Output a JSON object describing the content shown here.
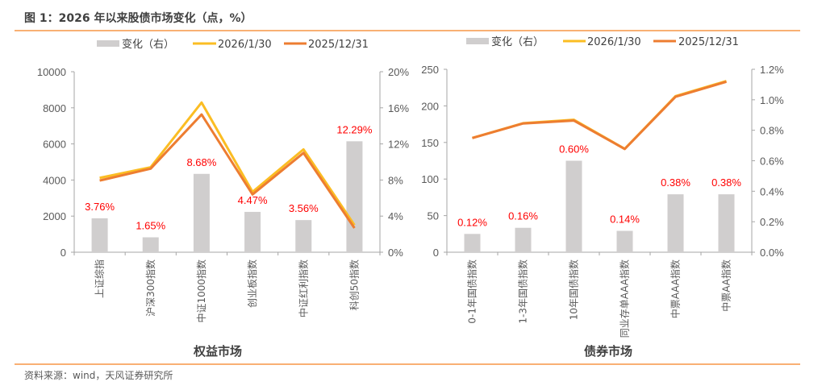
{
  "figure": {
    "title": "图 1：2026 年以来股债市场变化（点，%）",
    "source": "资料来源：wind，天风证券研究所",
    "accent_color": "#f79646"
  },
  "legend": {
    "bar_label": "变化（右）",
    "line1_label": "2026/1/30",
    "line2_label": "2025/12/31"
  },
  "colors": {
    "bar": "#d0cece",
    "line1": "#fbbd23",
    "line2": "#ed7d31",
    "data_label": "#ff0000"
  },
  "chart_data": [
    {
      "type": "bar+line",
      "xlabel": "权益市场",
      "categories": [
        "上证综指",
        "沪深300指数",
        "中证1000指数",
        "创业板指数",
        "中证红利指数",
        "科创50指数"
      ],
      "ylim": [
        0,
        10000
      ],
      "yticks": [
        "0",
        "2000",
        "4000",
        "6000",
        "8000",
        "10000"
      ],
      "y2lim": [
        0,
        20
      ],
      "y2ticks": [
        "0%",
        "4%",
        "8%",
        "12%",
        "16%",
        "20%"
      ],
      "series": [
        {
          "name": "变化（右）",
          "type": "bar",
          "axis": "right",
          "values": [
            3.76,
            1.65,
            8.68,
            4.47,
            3.56,
            12.29
          ],
          "labels": [
            "3.76%",
            "1.65%",
            "8.68%",
            "4.47%",
            "3.56%",
            "12.29%"
          ]
        },
        {
          "name": "2026/1/30",
          "type": "line",
          "axis": "left",
          "values": [
            4118,
            4706,
            8292,
            3343,
            5696,
            1505
          ]
        },
        {
          "name": "2025/12/31",
          "type": "line",
          "axis": "left",
          "values": [
            3969,
            4630,
            7630,
            3200,
            5500,
            1340
          ]
        }
      ],
      "legend_position": "top",
      "grid": false
    },
    {
      "type": "bar+line",
      "xlabel": "债券市场",
      "categories": [
        "0-1年国债指数",
        "1-3年国债指数",
        "10年国债指数",
        "同业存单AAA指数",
        "中票AAA指数",
        "中票AA指数"
      ],
      "ylim": [
        0,
        250
      ],
      "yticks": [
        "0",
        "50",
        "100",
        "150",
        "200",
        "250"
      ],
      "y2lim": [
        0,
        1.2
      ],
      "y2ticks": [
        "0.0%",
        "0.2%",
        "0.4%",
        "0.6%",
        "0.8%",
        "1.0%",
        "1.2%"
      ],
      "series": [
        {
          "name": "变化（右）",
          "type": "bar",
          "axis": "right",
          "values": [
            0.12,
            0.16,
            0.6,
            0.14,
            0.38,
            0.38
          ],
          "labels": [
            "0.12%",
            "0.16%",
            "0.60%",
            "0.14%",
            "0.38%",
            "0.38%"
          ]
        },
        {
          "name": "2026/1/30",
          "type": "line",
          "axis": "left",
          "values": [
            156.2,
            176.3,
            181.0,
            141.3,
            213.3,
            233.9
          ]
        },
        {
          "name": "2025/12/31",
          "type": "line",
          "axis": "left",
          "values": [
            156.0,
            176.0,
            179.9,
            141.1,
            212.5,
            233.0
          ]
        }
      ],
      "legend_position": "top",
      "grid": false
    }
  ]
}
